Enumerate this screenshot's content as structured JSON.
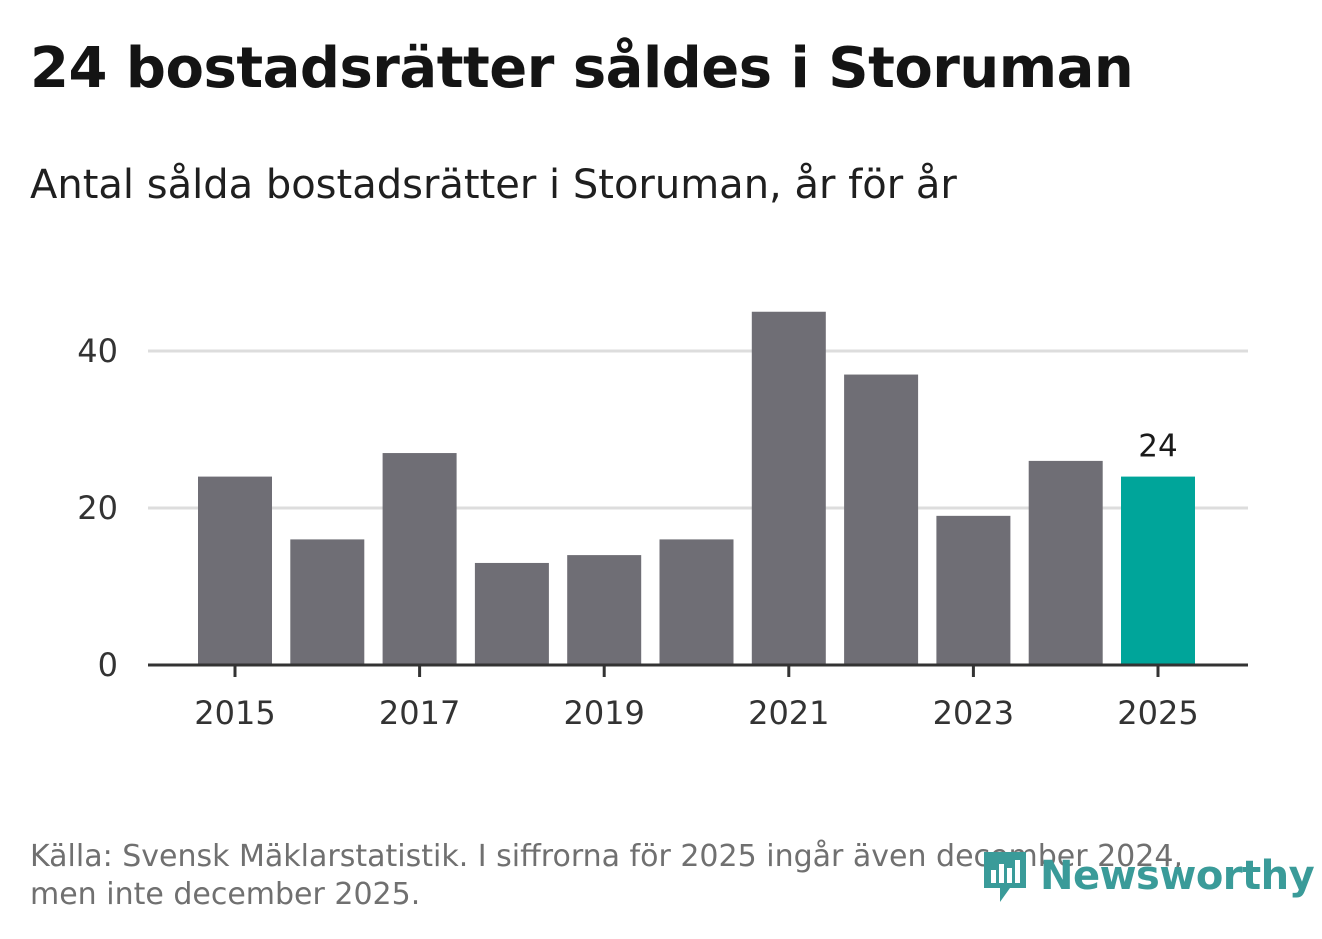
{
  "header": {
    "title": "24 bostadsrätter såldes i Storuman",
    "subtitle": "Antal sålda bostadsrätter i Storuman, år för år"
  },
  "footer": {
    "source_line1": "Källa: Svensk Mäklarstatistik. I siffrorna för 2025 ingår även december 2024,",
    "source_line2": "men inte december 2025.",
    "logo_text": "Newsworthy"
  },
  "colors": {
    "bar": "#6f6e75",
    "highlight": "#00a59a",
    "grid": "#dddddd",
    "axis": "#333333",
    "logo": "#3a9b99"
  },
  "chart_data": {
    "type": "bar",
    "title": "24 bostadsrätter såldes i Storuman",
    "subtitle": "Antal sålda bostadsrätter i Storuman, år för år",
    "xlabel": "",
    "ylabel": "",
    "categories": [
      "2015",
      "2016",
      "2017",
      "2018",
      "2019",
      "2020",
      "2021",
      "2022",
      "2023",
      "2024",
      "2025"
    ],
    "values": [
      24,
      16,
      27,
      13,
      14,
      16,
      45,
      37,
      19,
      26,
      24
    ],
    "highlight_index": 10,
    "highlight_label": "24",
    "x_tick_labels": [
      "2015",
      "2017",
      "2019",
      "2021",
      "2023",
      "2025"
    ],
    "y_ticks": [
      0,
      20,
      40
    ],
    "y_tick_labels": [
      "0",
      "20",
      "40"
    ],
    "ylim": [
      0,
      45
    ],
    "grid": true
  }
}
